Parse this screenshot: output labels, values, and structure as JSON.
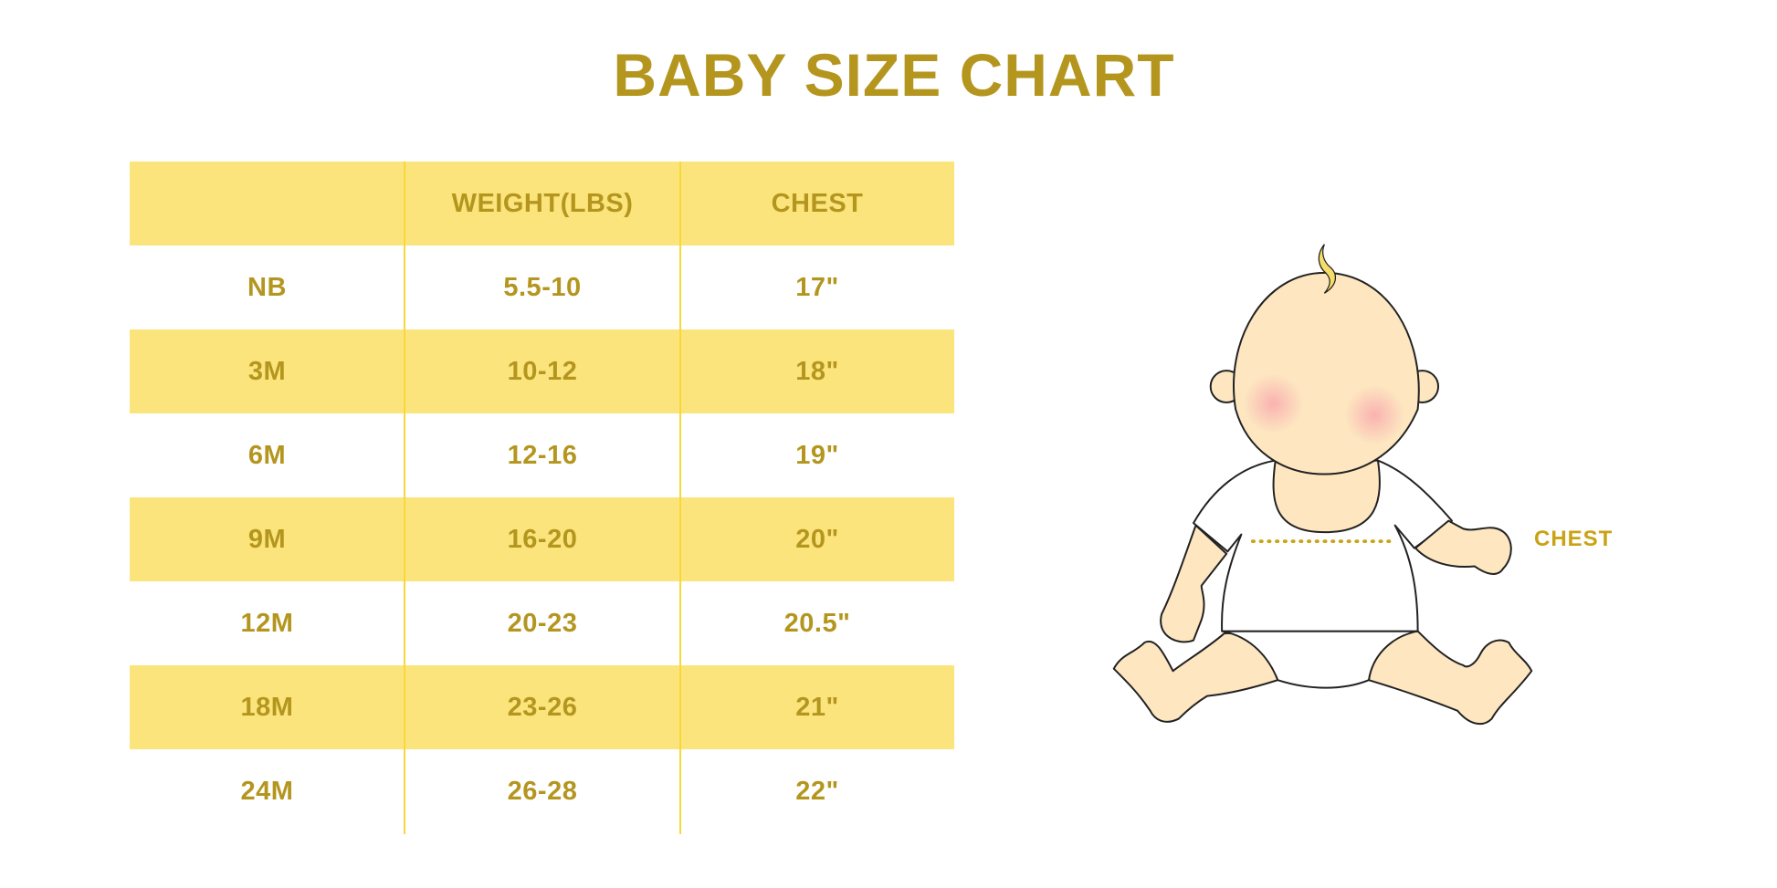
{
  "title": "BABY SIZE CHART",
  "table": {
    "headers": [
      "",
      "WEIGHT(LBS)",
      "CHEST"
    ],
    "rows": [
      [
        "NB",
        "5.5-10",
        "17\""
      ],
      [
        "3M",
        "10-12",
        "18\""
      ],
      [
        "6M",
        "12-16",
        "19\""
      ],
      [
        "9M",
        "16-20",
        "20\""
      ],
      [
        "12M",
        "20-23",
        "20.5\""
      ],
      [
        "18M",
        "23-26",
        "21\""
      ],
      [
        "24M",
        "26-28",
        "22\""
      ]
    ]
  },
  "illustration": {
    "chest_label": "CHEST"
  },
  "colors": {
    "accent_text": "#B4961F",
    "band": "#FBE47C",
    "divider": "#F8D838",
    "skin": "#FDE6C0"
  }
}
